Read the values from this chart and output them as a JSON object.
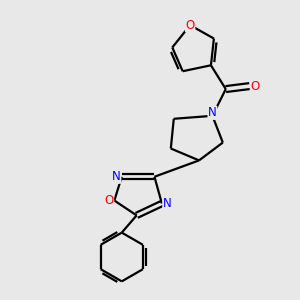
{
  "bg_color": "#e8e8e8",
  "bond_color": "#000000",
  "n_color": "#0000ff",
  "o_color": "#ff0000",
  "line_width": 1.6,
  "figsize": [
    3.0,
    3.0
  ],
  "dpi": 100,
  "xlim": [
    0,
    10
  ],
  "ylim": [
    0,
    10
  ]
}
